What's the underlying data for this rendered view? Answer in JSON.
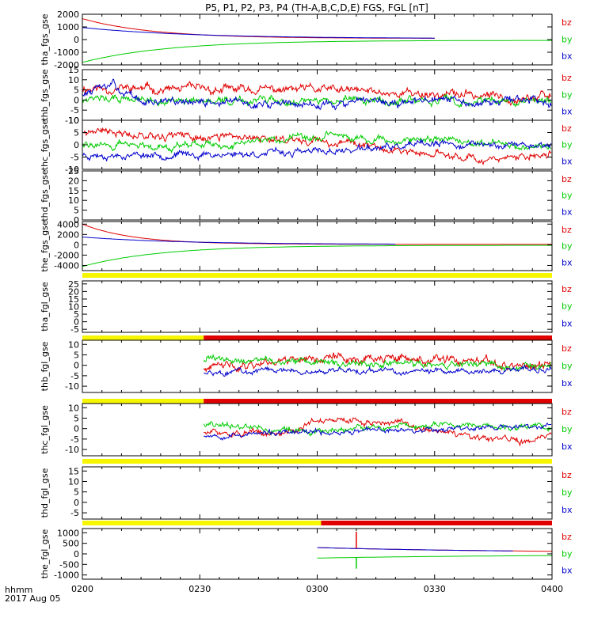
{
  "title": "P5, P1, P2, P3, P4 (TH-A,B,C,D,E) FGS, FGL [nT]",
  "colors": {
    "bz": "#e00000",
    "by": "#00cc00",
    "bx": "#0000cc",
    "yellow": "#f6f600",
    "red": "#e00000",
    "axis": "#000000"
  },
  "x_axis": {
    "ticks": [
      {
        "label": "0200",
        "m": 0
      },
      {
        "label": "0230",
        "m": 30
      },
      {
        "label": "0300",
        "m": 60
      },
      {
        "label": "0330",
        "m": 90
      },
      {
        "label": "0400",
        "m": 120
      }
    ],
    "format_label": "hhmm",
    "date_label": "2017 Aug 05",
    "range_minutes": [
      0,
      120
    ]
  },
  "chart_data": [
    {
      "type": "line",
      "ylabel": "tha_fgs_gse",
      "ylim": [
        -2000,
        2000
      ],
      "ticks": [
        2000,
        1000,
        0,
        -1000,
        -2000
      ],
      "legend": [
        "bz",
        "by",
        "bx"
      ],
      "series": [
        {
          "name": "bz",
          "kind": "decay",
          "start": 0,
          "end": 90,
          "y0": 1650,
          "yEnd": 90,
          "tau": 18
        },
        {
          "name": "bx",
          "kind": "decay",
          "start": 0,
          "end": 90,
          "y0": 950,
          "yEnd": 80,
          "tau": 28
        },
        {
          "name": "by",
          "kind": "decay",
          "start": 0,
          "end": 120,
          "y0": -1800,
          "yEnd": -60,
          "tau": 22
        }
      ]
    },
    {
      "type": "line",
      "ylabel": "thb_fgs_gse",
      "ylim": [
        -10,
        15
      ],
      "ticks": [
        15,
        10,
        5,
        0,
        -5,
        -10
      ],
      "legend": [
        "bz",
        "by",
        "bx"
      ],
      "series": [
        {
          "name": "bz",
          "kind": "noise",
          "start": 0,
          "end": 120,
          "base": [
            [
              0,
              6
            ],
            [
              30,
              5
            ],
            [
              60,
              5
            ],
            [
              90,
              3
            ],
            [
              120,
              1
            ]
          ],
          "amp": 2.2,
          "seed": 11
        },
        {
          "name": "by",
          "kind": "noise",
          "start": 0,
          "end": 120,
          "base": [
            [
              0,
              1
            ],
            [
              30,
              -1
            ],
            [
              60,
              0
            ],
            [
              90,
              -1
            ],
            [
              120,
              0
            ]
          ],
          "amp": 2.0,
          "seed": 12
        },
        {
          "name": "bx",
          "kind": "noise",
          "start": 0,
          "end": 120,
          "base": [
            [
              0,
              3
            ],
            [
              8,
              7
            ],
            [
              15,
              -1
            ],
            [
              60,
              -2
            ],
            [
              90,
              -1
            ],
            [
              120,
              0
            ]
          ],
          "amp": 2.0,
          "seed": 13
        }
      ]
    },
    {
      "type": "line",
      "ylabel": "thc_fgs_gse",
      "ylim": [
        -10,
        10
      ],
      "ticks": [
        10,
        5,
        0,
        -5,
        -10
      ],
      "legend": [
        "bz",
        "by",
        "bx"
      ],
      "series": [
        {
          "name": "bz",
          "kind": "noise",
          "start": 0,
          "end": 120,
          "base": [
            [
              0,
              6
            ],
            [
              30,
              3
            ],
            [
              60,
              2
            ],
            [
              90,
              -4
            ],
            [
              110,
              -6
            ],
            [
              120,
              -4
            ]
          ],
          "amp": 1.6,
          "seed": 21
        },
        {
          "name": "by",
          "kind": "noise",
          "start": 0,
          "end": 120,
          "base": [
            [
              0,
              0
            ],
            [
              30,
              0
            ],
            [
              60,
              3
            ],
            [
              90,
              2
            ],
            [
              120,
              -1
            ]
          ],
          "amp": 1.5,
          "seed": 22
        },
        {
          "name": "bx",
          "kind": "noise",
          "start": 0,
          "end": 120,
          "base": [
            [
              0,
              -4
            ],
            [
              30,
              -4
            ],
            [
              60,
              -3
            ],
            [
              90,
              0
            ],
            [
              120,
              0
            ]
          ],
          "amp": 1.4,
          "seed": 23
        }
      ]
    },
    {
      "type": "line",
      "ylabel": "thd_fgs_gse",
      "ylim": [
        0,
        25
      ],
      "ticks": [
        25,
        20,
        15,
        10,
        5,
        0
      ],
      "legend": [
        "bz",
        "by",
        "bx"
      ],
      "series": []
    },
    {
      "type": "line",
      "ylabel": "the_fgs_gse",
      "ylim": [
        -5000,
        4500
      ],
      "ticks": [
        4000,
        2000,
        0,
        -2000,
        -4000
      ],
      "legend": [
        "bz",
        "by",
        "bx"
      ],
      "series": [
        {
          "name": "bz",
          "kind": "decay",
          "start": 0,
          "end": 120,
          "y0": 4000,
          "yEnd": 100,
          "tau": 13
        },
        {
          "name": "bx",
          "kind": "decay",
          "start": 0,
          "end": 80,
          "y0": 1500,
          "yEnd": 80,
          "tau": 25
        },
        {
          "name": "by",
          "kind": "decay",
          "start": 0,
          "end": 120,
          "y0": -4200,
          "yEnd": -100,
          "tau": 20
        }
      ]
    },
    {
      "type": "line",
      "ylabel": "tha_fgl_gse",
      "ylim": [
        -7,
        27
      ],
      "ticks": [
        25,
        20,
        15,
        10,
        5,
        0,
        -5
      ],
      "legend": [
        "bz",
        "by",
        "bx"
      ],
      "series": [],
      "bar": [
        {
          "color": "yellow",
          "from": 0,
          "to": 120
        }
      ]
    },
    {
      "type": "line",
      "ylabel": "thb_fgl_gse",
      "ylim": [
        -13,
        12
      ],
      "ticks": [
        10,
        5,
        0,
        -5,
        -10
      ],
      "legend": [
        "bz",
        "by",
        "bx"
      ],
      "bar": [
        {
          "color": "yellow",
          "from": 0,
          "to": 31
        },
        {
          "color": "red",
          "from": 31,
          "to": 120
        }
      ],
      "series": [
        {
          "name": "bz",
          "kind": "noise",
          "start": 31,
          "end": 120,
          "base": [
            [
              31,
              -2
            ],
            [
              40,
              0
            ],
            [
              55,
              4
            ],
            [
              80,
              3
            ],
            [
              100,
              1
            ],
            [
              120,
              -1
            ]
          ],
          "amp": 2.2,
          "seed": 41
        },
        {
          "name": "by",
          "kind": "noise",
          "start": 31,
          "end": 120,
          "base": [
            [
              31,
              3
            ],
            [
              60,
              1
            ],
            [
              90,
              0
            ],
            [
              120,
              0
            ]
          ],
          "amp": 1.8,
          "seed": 42
        },
        {
          "name": "bx",
          "kind": "noise",
          "start": 31,
          "end": 120,
          "base": [
            [
              31,
              -3
            ],
            [
              60,
              -3
            ],
            [
              90,
              -3
            ],
            [
              120,
              -2
            ]
          ],
          "amp": 1.4,
          "seed": 43
        }
      ]
    },
    {
      "type": "line",
      "ylabel": "thc_fgl_gse",
      "ylim": [
        -13,
        12
      ],
      "ticks": [
        10,
        5,
        0,
        -5,
        -10
      ],
      "legend": [
        "bz",
        "by",
        "bx"
      ],
      "bar": [
        {
          "color": "yellow",
          "from": 0,
          "to": 31
        },
        {
          "color": "red",
          "from": 31,
          "to": 120
        }
      ],
      "series": [
        {
          "name": "bz",
          "kind": "noise",
          "start": 31,
          "end": 120,
          "base": [
            [
              31,
              -2
            ],
            [
              50,
              -3
            ],
            [
              60,
              4
            ],
            [
              80,
              3
            ],
            [
              100,
              -5
            ],
            [
              115,
              -6
            ],
            [
              120,
              -3
            ]
          ],
          "amp": 1.6,
          "seed": 51
        },
        {
          "name": "by",
          "kind": "noise",
          "start": 31,
          "end": 120,
          "base": [
            [
              31,
              2
            ],
            [
              60,
              -1
            ],
            [
              90,
              2
            ],
            [
              120,
              0
            ]
          ],
          "amp": 1.5,
          "seed": 52
        },
        {
          "name": "bx",
          "kind": "noise",
          "start": 31,
          "end": 120,
          "base": [
            [
              31,
              -3
            ],
            [
              60,
              -2
            ],
            [
              90,
              0
            ],
            [
              120,
              1
            ]
          ],
          "amp": 1.3,
          "seed": 53
        }
      ]
    },
    {
      "type": "line",
      "ylabel": "thd_fgl_gse",
      "ylim": [
        -8,
        17
      ],
      "ticks": [
        15,
        10,
        5,
        0,
        -5
      ],
      "legend": [
        "bz",
        "by",
        "bx"
      ],
      "series": [],
      "bar": [
        {
          "color": "yellow",
          "from": 0,
          "to": 120
        }
      ]
    },
    {
      "type": "line",
      "ylabel": "the_fgl_gse",
      "ylim": [
        -1200,
        1200
      ],
      "ticks": [
        1000,
        500,
        0,
        -500,
        -1000
      ],
      "legend": [
        "bz",
        "by",
        "bx"
      ],
      "bar": [
        {
          "color": "yellow",
          "from": 0,
          "to": 61
        },
        {
          "color": "red",
          "from": 61,
          "to": 120
        }
      ],
      "series": [
        {
          "name": "bz",
          "kind": "decay",
          "start": 60,
          "end": 120,
          "y0": 300,
          "yEnd": 60,
          "tau": 45,
          "spike": {
            "m": 70,
            "v": 1050
          }
        },
        {
          "name": "bx",
          "kind": "decay",
          "start": 60,
          "end": 110,
          "y0": 300,
          "yEnd": 60,
          "tau": 45
        },
        {
          "name": "by",
          "kind": "decay",
          "start": 60,
          "end": 120,
          "y0": -200,
          "yEnd": -40,
          "tau": 45,
          "spike": {
            "m": 70,
            "v": -700
          }
        }
      ]
    }
  ]
}
